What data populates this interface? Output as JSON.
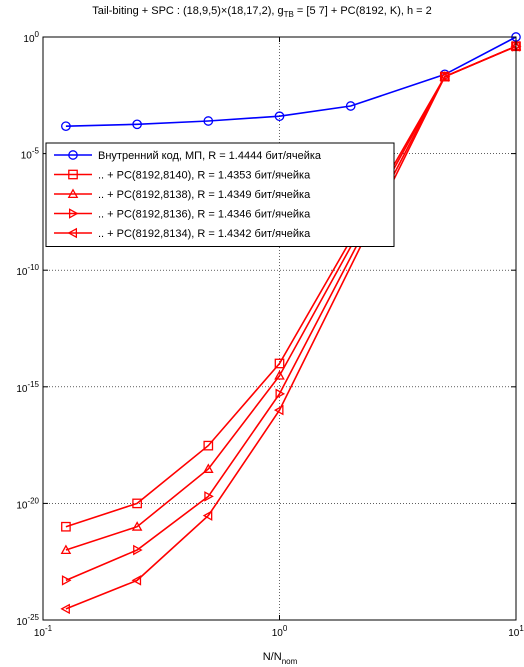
{
  "chart_data": {
    "type": "line",
    "title": {
      "prefix": "Tail-biting + SPC : (18,9,5)×(18,17,2), g",
      "sub": "TB",
      "suffix": " = [5  7] + PC(8192, K), h = 2"
    },
    "xlabel": {
      "main": "N/N",
      "sub": "nom"
    },
    "ylabel": "",
    "xscale": "log",
    "yscale": "log",
    "xlim": [
      0.1,
      10
    ],
    "ylim": [
      1e-25,
      1
    ],
    "grid": true,
    "legend_position": "upper-left",
    "x_ticks": [
      {
        "base": "10",
        "exp": "-1",
        "value": 0.1
      },
      {
        "base": "10",
        "exp": "0",
        "value": 1
      },
      {
        "base": "10",
        "exp": "1",
        "value": 10
      }
    ],
    "y_ticks": [
      {
        "base": "10",
        "exp": "0",
        "value": 1
      },
      {
        "base": "10",
        "exp": "-5",
        "value": 1e-05
      },
      {
        "base": "10",
        "exp": "-10",
        "value": 1e-10
      },
      {
        "base": "10",
        "exp": "-15",
        "value": 1e-15
      },
      {
        "base": "10",
        "exp": "-20",
        "value": 1e-20
      },
      {
        "base": "10",
        "exp": "-25",
        "value": 1e-25
      }
    ],
    "series": [
      {
        "name": "Внутренний код, МП, R = 1.4444 бит/ячейка",
        "color": "#0000ff",
        "marker": "circle",
        "x": [
          0.125,
          0.25,
          0.5,
          1,
          2,
          5,
          10
        ],
        "y": [
          0.00015,
          0.00018,
          0.00025,
          0.0004,
          0.0011,
          0.025,
          1.0
        ]
      },
      {
        "name": ".. + PC(8192,8140), R = 1.4353 бит/ячейка",
        "color": "#ff0000",
        "marker": "square",
        "x": [
          0.125,
          0.25,
          0.5,
          1,
          5,
          10
        ],
        "y": [
          1e-21,
          1e-20,
          3e-18,
          1e-14,
          0.02,
          0.4
        ]
      },
      {
        "name": ".. + PC(8192,8138), R = 1.4349 бит/ячейка",
        "color": "#ff0000",
        "marker": "triangle-up",
        "x": [
          0.125,
          0.25,
          0.5,
          1,
          5,
          10
        ],
        "y": [
          1e-22,
          1e-21,
          3e-19,
          3e-15,
          0.02,
          0.4
        ]
      },
      {
        "name": ".. + PC(8192,8136), R = 1.4346 бит/ячейка",
        "color": "#ff0000",
        "marker": "triangle-right",
        "x": [
          0.125,
          0.25,
          0.5,
          1,
          5,
          10
        ],
        "y": [
          5e-24,
          1e-22,
          2e-20,
          5e-16,
          0.02,
          0.4
        ]
      },
      {
        "name": ".. + PC(8192,8134), R = 1.4342 бит/ячейка",
        "color": "#ff0000",
        "marker": "triangle-left",
        "x": [
          0.125,
          0.25,
          0.5,
          1,
          5,
          10
        ],
        "y": [
          3e-25,
          5e-24,
          3e-21,
          1e-16,
          0.02,
          0.4
        ]
      }
    ]
  }
}
